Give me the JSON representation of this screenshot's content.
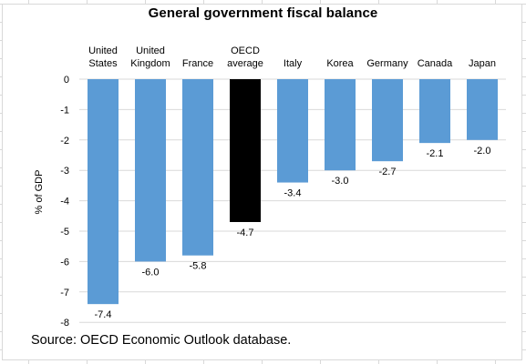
{
  "chart_data": {
    "type": "bar",
    "title": "General government fiscal balance",
    "ylabel": "% of GDP",
    "categories": [
      "United\nStates",
      "United\nKingdom",
      "France",
      "OECD\naverage",
      "Italy",
      "Korea",
      "Germany",
      "Canada",
      "Japan"
    ],
    "values": [
      -7.4,
      -6.0,
      -5.8,
      -4.7,
      -3.4,
      -3.0,
      -2.7,
      -2.1,
      -2.0
    ],
    "value_labels": [
      "-7.4",
      "-6.0",
      "-5.8",
      "-4.7",
      "-3.4",
      "-3.0",
      "-2.7",
      "-2.1",
      "-2.0"
    ],
    "highlight_index": 3,
    "ylim": [
      -8,
      0
    ],
    "yticks": [
      "0",
      "-1",
      "-2",
      "-3",
      "-4",
      "-5",
      "-6",
      "-7",
      "-8"
    ],
    "grid": true,
    "colors": {
      "bar": "#5b9bd5",
      "highlight": "#000000"
    }
  },
  "source": "Source: OECD Economic Outlook database."
}
